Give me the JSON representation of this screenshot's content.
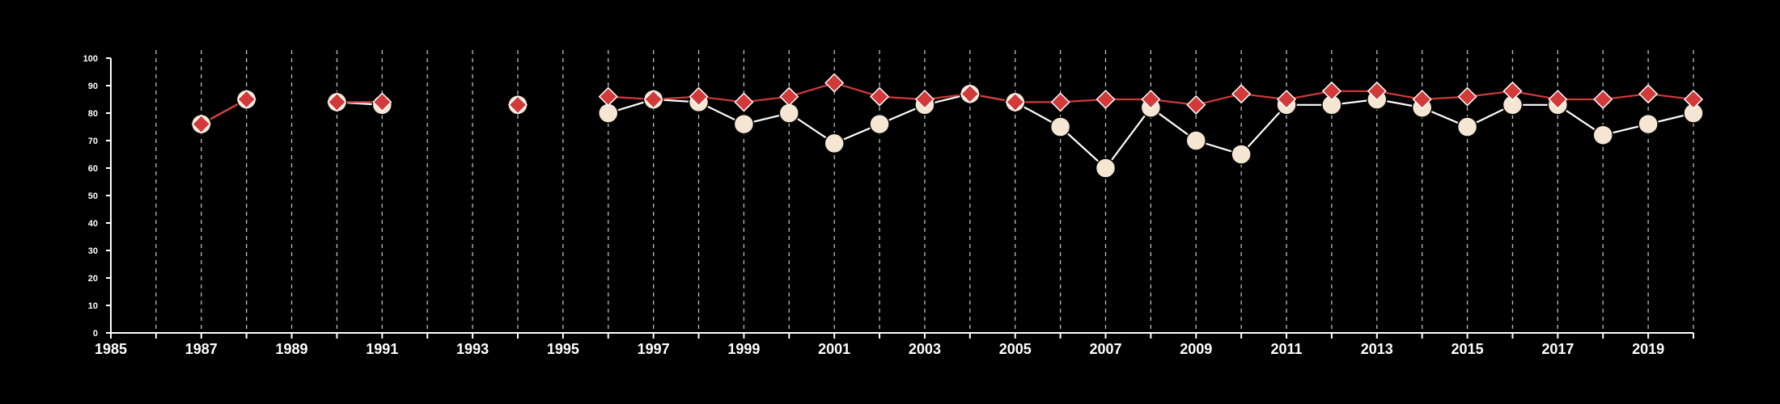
{
  "chart_data": {
    "type": "line",
    "title": "",
    "xlabel": "",
    "ylabel": "",
    "xlim": [
      1985,
      2020
    ],
    "ylim": [
      0,
      100
    ],
    "x_ticks": [
      1985,
      1987,
      1989,
      1991,
      1993,
      1995,
      1997,
      1999,
      2001,
      2003,
      2005,
      2007,
      2009,
      2011,
      2013,
      2015,
      2017,
      2019
    ],
    "y_ticks": [
      0,
      10,
      20,
      30,
      40,
      50,
      60,
      70,
      80,
      90,
      100
    ],
    "grid": "vertical dashed lines at every year from 1986 to 2020",
    "background": "#000000",
    "series": [
      {
        "marker": "circle",
        "color": "#f5e6d3",
        "line_color": "#ffffff",
        "points": [
          [
            1987,
            76
          ],
          [
            1988,
            85
          ],
          [
            1990,
            84
          ],
          [
            1991,
            83
          ],
          [
            1994,
            83
          ],
          [
            1996,
            80
          ],
          [
            1997,
            85
          ],
          [
            1998,
            84
          ],
          [
            1999,
            76
          ],
          [
            2000,
            80
          ],
          [
            2001,
            69
          ],
          [
            2002,
            76
          ],
          [
            2003,
            83
          ],
          [
            2004,
            87
          ],
          [
            2005,
            84
          ],
          [
            2006,
            75
          ],
          [
            2007,
            60
          ],
          [
            2008,
            82
          ],
          [
            2009,
            70
          ],
          [
            2010,
            65
          ],
          [
            2011,
            83
          ],
          [
            2012,
            83
          ],
          [
            2013,
            85
          ],
          [
            2014,
            82
          ],
          [
            2015,
            75
          ],
          [
            2016,
            83
          ],
          [
            2017,
            83
          ],
          [
            2018,
            72
          ],
          [
            2019,
            76
          ],
          [
            2020,
            80
          ]
        ]
      },
      {
        "marker": "diamond",
        "color": "#d23a3a",
        "line_color": "#d23a3a",
        "points": [
          [
            1987,
            76
          ],
          [
            1988,
            85
          ],
          [
            1990,
            84
          ],
          [
            1991,
            84
          ],
          [
            1994,
            83
          ],
          [
            1996,
            86
          ],
          [
            1997,
            85
          ],
          [
            1998,
            86
          ],
          [
            1999,
            84
          ],
          [
            2000,
            86
          ],
          [
            2001,
            91
          ],
          [
            2002,
            86
          ],
          [
            2003,
            85
          ],
          [
            2004,
            87
          ],
          [
            2005,
            84
          ],
          [
            2006,
            84
          ],
          [
            2007,
            85
          ],
          [
            2008,
            85
          ],
          [
            2009,
            83
          ],
          [
            2010,
            87
          ],
          [
            2011,
            85
          ],
          [
            2012,
            88
          ],
          [
            2013,
            88
          ],
          [
            2014,
            85
          ],
          [
            2015,
            86
          ],
          [
            2016,
            88
          ],
          [
            2017,
            85
          ],
          [
            2018,
            85
          ],
          [
            2019,
            87
          ],
          [
            2020,
            85
          ]
        ]
      }
    ]
  }
}
